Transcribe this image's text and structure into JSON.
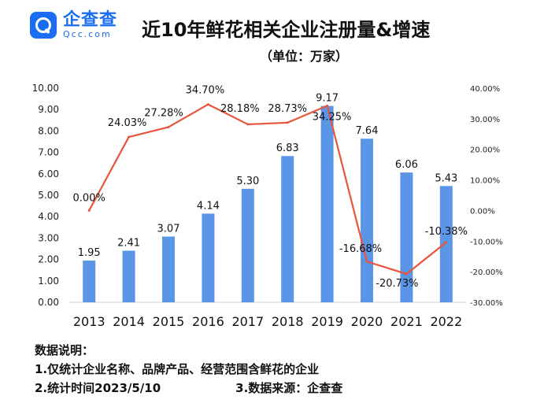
{
  "logo": {
    "cn": "企查查",
    "en": "Qcc.com",
    "icon": "qcc-search-icon"
  },
  "header": {
    "title": "近10年鲜花相关企业注册量&增速",
    "subtitle": "（单位：万家）"
  },
  "chart_data": {
    "type": "bar",
    "categories": [
      "2013",
      "2014",
      "2015",
      "2016",
      "2017",
      "2018",
      "2019",
      "2020",
      "2021",
      "2022"
    ],
    "series": [
      {
        "type": "bar",
        "values": [
          1.95,
          2.41,
          3.07,
          4.14,
          5.3,
          6.83,
          9.17,
          7.64,
          6.06,
          5.43
        ],
        "labels": [
          "1.95",
          "2.41",
          "3.07",
          "4.14",
          "5.30",
          "6.83",
          "9.17",
          "7.64",
          "6.06",
          "5.43"
        ],
        "color": "#5b95e6",
        "axis": "left"
      },
      {
        "type": "line",
        "values": [
          0.0,
          24.03,
          27.28,
          34.7,
          28.18,
          28.73,
          34.25,
          -16.68,
          -20.73,
          -10.38
        ],
        "labels": [
          "0.00%",
          "24.03%",
          "27.28%",
          "34.70%",
          "28.18%",
          "28.73%",
          "34.25%",
          "-16.68%",
          "-20.73%",
          "-10.38%"
        ],
        "color": "#e8553b",
        "axis": "right"
      }
    ],
    "y_left": {
      "ylim": [
        0,
        10
      ],
      "ticks": [
        "0.00",
        "1.00",
        "2.00",
        "3.00",
        "4.00",
        "5.00",
        "6.00",
        "7.00",
        "8.00",
        "9.00",
        "10.00"
      ]
    },
    "y_right": {
      "ylim": [
        -30,
        40
      ],
      "ticks": [
        "-30.00%",
        "-20.00%",
        "-10.00%",
        "0.00%",
        "10.00%",
        "20.00%",
        "30.00%",
        "40.00%"
      ]
    },
    "grid": false,
    "legend": "none"
  },
  "notes": {
    "heading": "数据说明：",
    "line1": "1.仅统计企业名称、品牌产品、经营范围含鲜花的企业",
    "line2": "2.统计时间2023/5/10",
    "line3": "3.数据来源：企查查"
  }
}
